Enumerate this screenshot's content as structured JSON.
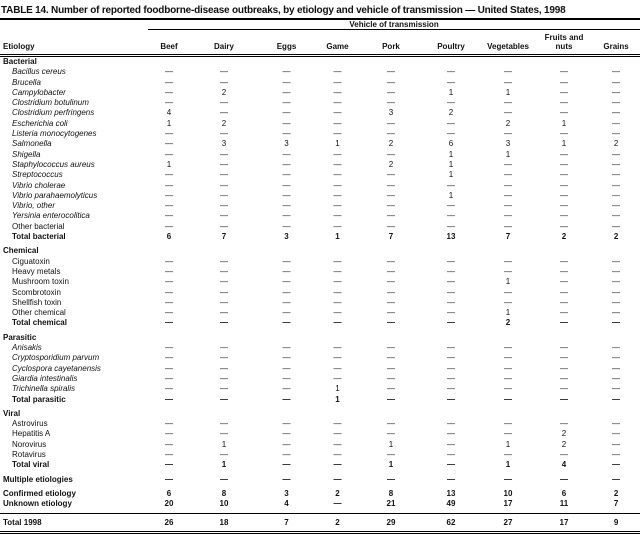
{
  "title": "TABLE 14. Number of reported foodborne-disease outbreaks, by etiology and vehicle of transmission — United States, 1998",
  "table": {
    "spanner": "Vehicle of transmission",
    "etiology_header": "Etiology",
    "columns": [
      "Beef",
      "Dairy",
      "Eggs",
      "Game",
      "Pork",
      "Poultry",
      "Vegetables",
      "Fruits and nuts",
      "Grains"
    ],
    "sections": [
      {
        "header": "Bacterial",
        "rows": [
          {
            "label": "Bacillus cereus",
            "italic": true,
            "values": [
              "—",
              "—",
              "—",
              "—",
              "—",
              "—",
              "—",
              "—",
              "—"
            ]
          },
          {
            "label": "Brucella",
            "italic": true,
            "values": [
              "—",
              "—",
              "—",
              "—",
              "—",
              "—",
              "—",
              "—",
              "—"
            ]
          },
          {
            "label": "Campylobacter",
            "italic": true,
            "values": [
              "—",
              "2",
              "—",
              "—",
              "—",
              "1",
              "1",
              "—",
              "—"
            ]
          },
          {
            "label": "Clostridium botulinum",
            "italic": true,
            "values": [
              "—",
              "—",
              "—",
              "—",
              "—",
              "—",
              "—",
              "—",
              "—"
            ]
          },
          {
            "label": "Clostridium perfringens",
            "italic": true,
            "values": [
              "4",
              "—",
              "—",
              "—",
              "3",
              "2",
              "—",
              "—",
              "—"
            ]
          },
          {
            "label": "Escherichia coli",
            "italic": true,
            "values": [
              "1",
              "2",
              "—",
              "—",
              "—",
              "—",
              "2",
              "1",
              "—"
            ]
          },
          {
            "label": "Listeria monocytogenes",
            "italic": true,
            "values": [
              "—",
              "—",
              "—",
              "—",
              "—",
              "—",
              "—",
              "—",
              "—"
            ]
          },
          {
            "label": "Salmonella",
            "italic": true,
            "values": [
              "—",
              "3",
              "3",
              "1",
              "2",
              "6",
              "3",
              "1",
              "2"
            ]
          },
          {
            "label": "Shigella",
            "italic": true,
            "values": [
              "—",
              "—",
              "—",
              "—",
              "—",
              "1",
              "1",
              "—",
              "—"
            ]
          },
          {
            "label": "Staphylococcus aureus",
            "italic": true,
            "values": [
              "1",
              "—",
              "—",
              "—",
              "2",
              "1",
              "—",
              "—",
              "—"
            ]
          },
          {
            "label": "Streptococcus",
            "italic": true,
            "values": [
              "—",
              "—",
              "—",
              "—",
              "—",
              "1",
              "—",
              "—",
              "—"
            ]
          },
          {
            "label": "Vibrio cholerae",
            "italic": true,
            "values": [
              "—",
              "—",
              "—",
              "—",
              "—",
              "—",
              "—",
              "—",
              "—"
            ]
          },
          {
            "label": "Vibrio parahaemolyticus",
            "italic": true,
            "values": [
              "—",
              "—",
              "—",
              "—",
              "—",
              "1",
              "—",
              "—",
              "—"
            ]
          },
          {
            "label": "Vibrio, other",
            "italic": true,
            "values": [
              "—",
              "—",
              "—",
              "—",
              "—",
              "—",
              "—",
              "—",
              "—"
            ]
          },
          {
            "label": "Yersinia enterocolitica",
            "italic": true,
            "values": [
              "—",
              "—",
              "—",
              "—",
              "—",
              "—",
              "—",
              "—",
              "—"
            ]
          },
          {
            "label": "Other bacterial",
            "italic": false,
            "values": [
              "—",
              "—",
              "—",
              "—",
              "—",
              "—",
              "—",
              "—",
              "—"
            ]
          },
          {
            "label": "Total bacterial",
            "bold": true,
            "values": [
              "6",
              "7",
              "3",
              "1",
              "7",
              "13",
              "7",
              "2",
              "2"
            ]
          }
        ]
      },
      {
        "header": "Chemical",
        "rows": [
          {
            "label": "Ciguatoxin",
            "values": [
              "—",
              "—",
              "—",
              "—",
              "—",
              "—",
              "—",
              "—",
              "—"
            ]
          },
          {
            "label": "Heavy metals",
            "values": [
              "—",
              "—",
              "—",
              "—",
              "—",
              "—",
              "—",
              "—",
              "—"
            ]
          },
          {
            "label": "Mushroom toxin",
            "values": [
              "—",
              "—",
              "—",
              "—",
              "—",
              "—",
              "1",
              "—",
              "—"
            ]
          },
          {
            "label": "Scombrotoxin",
            "values": [
              "—",
              "—",
              "—",
              "—",
              "—",
              "—",
              "—",
              "—",
              "—"
            ]
          },
          {
            "label": "Shellfish toxin",
            "values": [
              "—",
              "—",
              "—",
              "—",
              "—",
              "—",
              "—",
              "—",
              "—"
            ]
          },
          {
            "label": "Other chemical",
            "values": [
              "—",
              "—",
              "—",
              "—",
              "—",
              "—",
              "1",
              "—",
              "—"
            ]
          },
          {
            "label": "Total chemical",
            "bold": true,
            "values": [
              "—",
              "—",
              "—",
              "—",
              "—",
              "—",
              "2",
              "—",
              "—"
            ]
          }
        ]
      },
      {
        "header": "Parasitic",
        "rows": [
          {
            "label": "Anisakis",
            "italic": true,
            "values": [
              "—",
              "—",
              "—",
              "—",
              "—",
              "—",
              "—",
              "—",
              "—"
            ]
          },
          {
            "label": "Cryptosporidium parvum",
            "italic": true,
            "values": [
              "—",
              "—",
              "—",
              "—",
              "—",
              "—",
              "—",
              "—",
              "—"
            ]
          },
          {
            "label": "Cyclospora cayetanensis",
            "italic": true,
            "values": [
              "—",
              "—",
              "—",
              "—",
              "—",
              "—",
              "—",
              "—",
              "—"
            ]
          },
          {
            "label": "Giardia intestinalis",
            "italic": true,
            "values": [
              "—",
              "—",
              "—",
              "—",
              "—",
              "—",
              "—",
              "—",
              "—"
            ]
          },
          {
            "label": "Trichinella spiralis",
            "italic": true,
            "values": [
              "—",
              "—",
              "—",
              "1",
              "—",
              "—",
              "—",
              "—",
              "—"
            ]
          },
          {
            "label": "Total parasitic",
            "bold": true,
            "values": [
              "—",
              "—",
              "—",
              "1",
              "—",
              "—",
              "—",
              "—",
              "—"
            ]
          }
        ]
      },
      {
        "header": "Viral",
        "rows": [
          {
            "label": "Astrovirus",
            "values": [
              "—",
              "—",
              "—",
              "—",
              "—",
              "—",
              "—",
              "—",
              "—"
            ]
          },
          {
            "label": "Hepatitis A",
            "values": [
              "—",
              "—",
              "—",
              "—",
              "—",
              "—",
              "—",
              "2",
              "—"
            ]
          },
          {
            "label": "Norovirus",
            "values": [
              "—",
              "1",
              "—",
              "—",
              "1",
              "—",
              "1",
              "2",
              "—"
            ]
          },
          {
            "label": "Rotavirus",
            "values": [
              "—",
              "—",
              "—",
              "—",
              "—",
              "—",
              "—",
              "—",
              "—"
            ]
          },
          {
            "label": "Total viral",
            "bold": true,
            "values": [
              "—",
              "1",
              "—",
              "—",
              "1",
              "—",
              "1",
              "4",
              "—"
            ]
          }
        ]
      }
    ],
    "footer_groups": [
      {
        "rows": [
          {
            "label": "Multiple etiologies",
            "bold": true,
            "values": [
              "—",
              "—",
              "—",
              "—",
              "—",
              "—",
              "—",
              "—",
              "—"
            ]
          }
        ]
      },
      {
        "rows": [
          {
            "label": "Confirmed etiology",
            "bold": true,
            "values": [
              "6",
              "8",
              "3",
              "2",
              "8",
              "13",
              "10",
              "6",
              "2"
            ]
          },
          {
            "label": "Unknown etiology",
            "bold": true,
            "values": [
              "20",
              "10",
              "4",
              "—",
              "21",
              "49",
              "17",
              "11",
              "7"
            ]
          }
        ]
      },
      {
        "rule_above": true,
        "rows": [
          {
            "label": "Total 1998",
            "bold": true,
            "values": [
              "26",
              "18",
              "7",
              "2",
              "29",
              "62",
              "27",
              "17",
              "9"
            ]
          }
        ]
      }
    ]
  }
}
